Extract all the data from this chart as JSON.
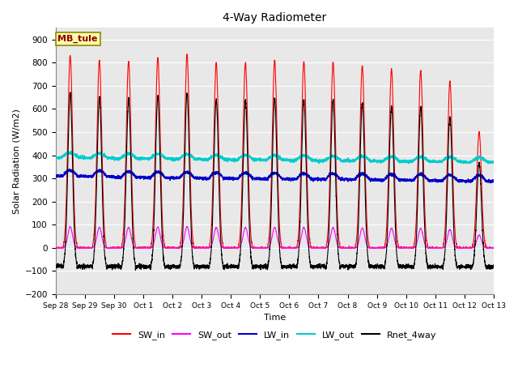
{
  "title": "4-Way Radiometer",
  "xlabel": "Time",
  "ylabel": "Solar Radiation (W/m2)",
  "ylim": [
    -200,
    950
  ],
  "yticks": [
    -200,
    -100,
    0,
    100,
    200,
    300,
    400,
    500,
    600,
    700,
    800,
    900
  ],
  "bg_color": "#e8e8e8",
  "plot_bg_color": "#e8e8e8",
  "station_label": "MB_tule",
  "x_tick_labels": [
    "Sep 28",
    "Sep 29",
    "Sep 30",
    "Oct 1",
    "Oct 2",
    "Oct 3",
    "Oct 4",
    "Oct 5",
    "Oct 6",
    "Oct 7",
    "Oct 8",
    "Oct 9",
    "Oct 10",
    "Oct 11",
    "Oct 12",
    "Oct 13"
  ],
  "num_days": 15,
  "sw_in_peaks": [
    830,
    810,
    805,
    820,
    835,
    800,
    800,
    810,
    805,
    800,
    785,
    770,
    765,
    720,
    500
  ],
  "lw_out_base": [
    390,
    388,
    386,
    385,
    383,
    381,
    380,
    379,
    378,
    376,
    375,
    374,
    373,
    372,
    370
  ],
  "lw_in_base": [
    310,
    308,
    305,
    303,
    302,
    300,
    299,
    298,
    297,
    296,
    295,
    293,
    292,
    290,
    288
  ],
  "lines": {
    "SW_in": {
      "color": "#ff0000",
      "lw": 0.8
    },
    "SW_out": {
      "color": "#ff00ff",
      "lw": 0.8
    },
    "LW_in": {
      "color": "#0000cc",
      "lw": 1.0
    },
    "LW_out": {
      "color": "#00cccc",
      "lw": 1.0
    },
    "Rnet_4way": {
      "color": "#000000",
      "lw": 0.8
    }
  }
}
